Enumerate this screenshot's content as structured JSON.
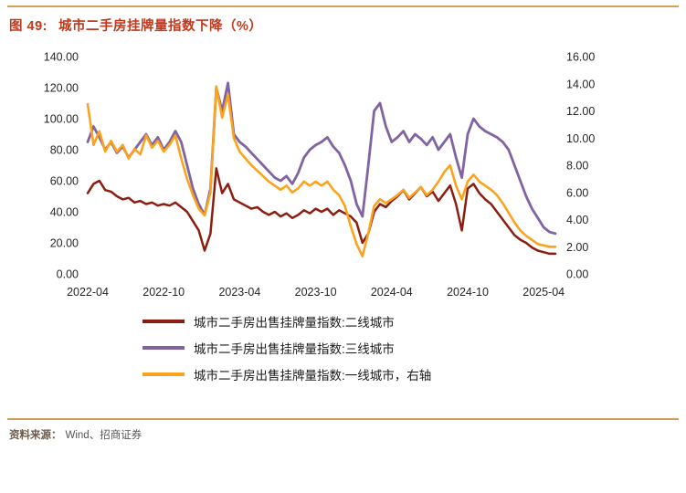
{
  "header": {
    "figure_label": "图 49:",
    "figure_title": "城市二手房挂牌量指数下降（%）"
  },
  "footer": {
    "source_label": "资料来源：",
    "source_text": "Wind、招商证券"
  },
  "colors": {
    "title_red": "#C0391D",
    "rule_tan": "#D2A05C",
    "series_tier2": "#8B1E10",
    "series_tier3": "#8064A2",
    "series_tier1": "#FCA31E"
  },
  "chart_data": {
    "type": "line",
    "title": "城市二手房挂牌量指数下降（%）",
    "grid": false,
    "legend_position": "bottom",
    "n_points": 81,
    "x_ticks": [
      {
        "label": "2022-04",
        "pos": 0
      },
      {
        "label": "2022-10",
        "pos": 13
      },
      {
        "label": "2023-04",
        "pos": 26
      },
      {
        "label": "2023-10",
        "pos": 39
      },
      {
        "label": "2024-04",
        "pos": 52
      },
      {
        "label": "2024-10",
        "pos": 65
      },
      {
        "label": "2025-04",
        "pos": 78
      }
    ],
    "left_axis": {
      "min": 0,
      "max": 140,
      "step": 20,
      "ticks": [
        "0.00",
        "20.00",
        "40.00",
        "60.00",
        "80.00",
        "100.00",
        "120.00",
        "140.00"
      ]
    },
    "right_axis": {
      "min": 0,
      "max": 16,
      "step": 2,
      "ticks": [
        "0.00",
        "2.00",
        "4.00",
        "6.00",
        "8.00",
        "10.00",
        "12.00",
        "14.00",
        "16.00"
      ]
    },
    "series": [
      {
        "name": "城市二手房出售挂牌量指数:二线城市",
        "axis": "left",
        "color": "#8B1E10",
        "stroke_width": 2.5,
        "values": [
          52,
          58,
          60,
          54,
          53,
          50,
          48,
          49,
          46,
          47,
          45,
          46,
          44,
          45,
          44,
          46,
          43,
          40,
          34,
          28,
          15,
          26,
          68,
          52,
          58,
          48,
          46,
          44,
          42,
          43,
          40,
          38,
          40,
          37,
          39,
          36,
          38,
          41,
          39,
          42,
          40,
          42,
          38,
          41,
          39,
          37,
          33,
          20,
          26,
          40,
          45,
          43,
          47,
          50,
          54,
          48,
          52,
          56,
          50,
          53,
          47,
          52,
          57,
          45,
          28,
          55,
          58,
          52,
          48,
          45,
          40,
          35,
          30,
          25,
          22,
          20,
          17,
          15,
          14,
          13,
          13
        ]
      },
      {
        "name": "城市二手房出售挂牌量指数:三线城市",
        "axis": "left",
        "color": "#8064A2",
        "stroke_width": 2.8,
        "values": [
          85,
          95,
          88,
          80,
          85,
          78,
          82,
          75,
          80,
          85,
          90,
          83,
          88,
          80,
          85,
          92,
          85,
          70,
          55,
          45,
          38,
          55,
          120,
          105,
          123,
          90,
          85,
          82,
          78,
          74,
          70,
          66,
          62,
          60,
          63,
          58,
          65,
          75,
          80,
          83,
          85,
          88,
          82,
          78,
          70,
          60,
          45,
          37,
          70,
          105,
          110,
          95,
          85,
          88,
          92,
          85,
          90,
          87,
          83,
          88,
          80,
          85,
          90,
          75,
          62,
          90,
          100,
          95,
          92,
          90,
          88,
          85,
          80,
          70,
          60,
          50,
          42,
          36,
          30,
          27,
          26
        ]
      },
      {
        "name": "城市二手房出售挂牌量指数:一线城市，右轴",
        "axis": "right",
        "color": "#FCA31E",
        "stroke_width": 2.6,
        "values": [
          12.5,
          9.5,
          10.5,
          9.0,
          9.8,
          9.0,
          9.5,
          8.5,
          9.2,
          8.8,
          10.2,
          9.3,
          9.8,
          9.0,
          9.5,
          10.2,
          8.5,
          7.0,
          5.8,
          4.8,
          4.3,
          6.0,
          13.8,
          11.5,
          13.2,
          10.0,
          9.0,
          8.5,
          8.0,
          7.6,
          7.2,
          6.8,
          6.5,
          6.2,
          6.5,
          6.0,
          6.3,
          6.8,
          6.5,
          6.8,
          6.5,
          6.8,
          6.2,
          5.8,
          5.0,
          3.5,
          2.2,
          1.3,
          3.0,
          5.0,
          5.5,
          5.2,
          5.5,
          5.8,
          6.2,
          5.6,
          6.0,
          6.4,
          5.8,
          6.2,
          6.8,
          7.5,
          8.0,
          6.5,
          5.5,
          6.8,
          7.3,
          6.8,
          6.5,
          6.2,
          5.8,
          5.2,
          4.5,
          3.8,
          3.2,
          2.8,
          2.5,
          2.2,
          2.1,
          2.0,
          2.0
        ]
      }
    ]
  }
}
